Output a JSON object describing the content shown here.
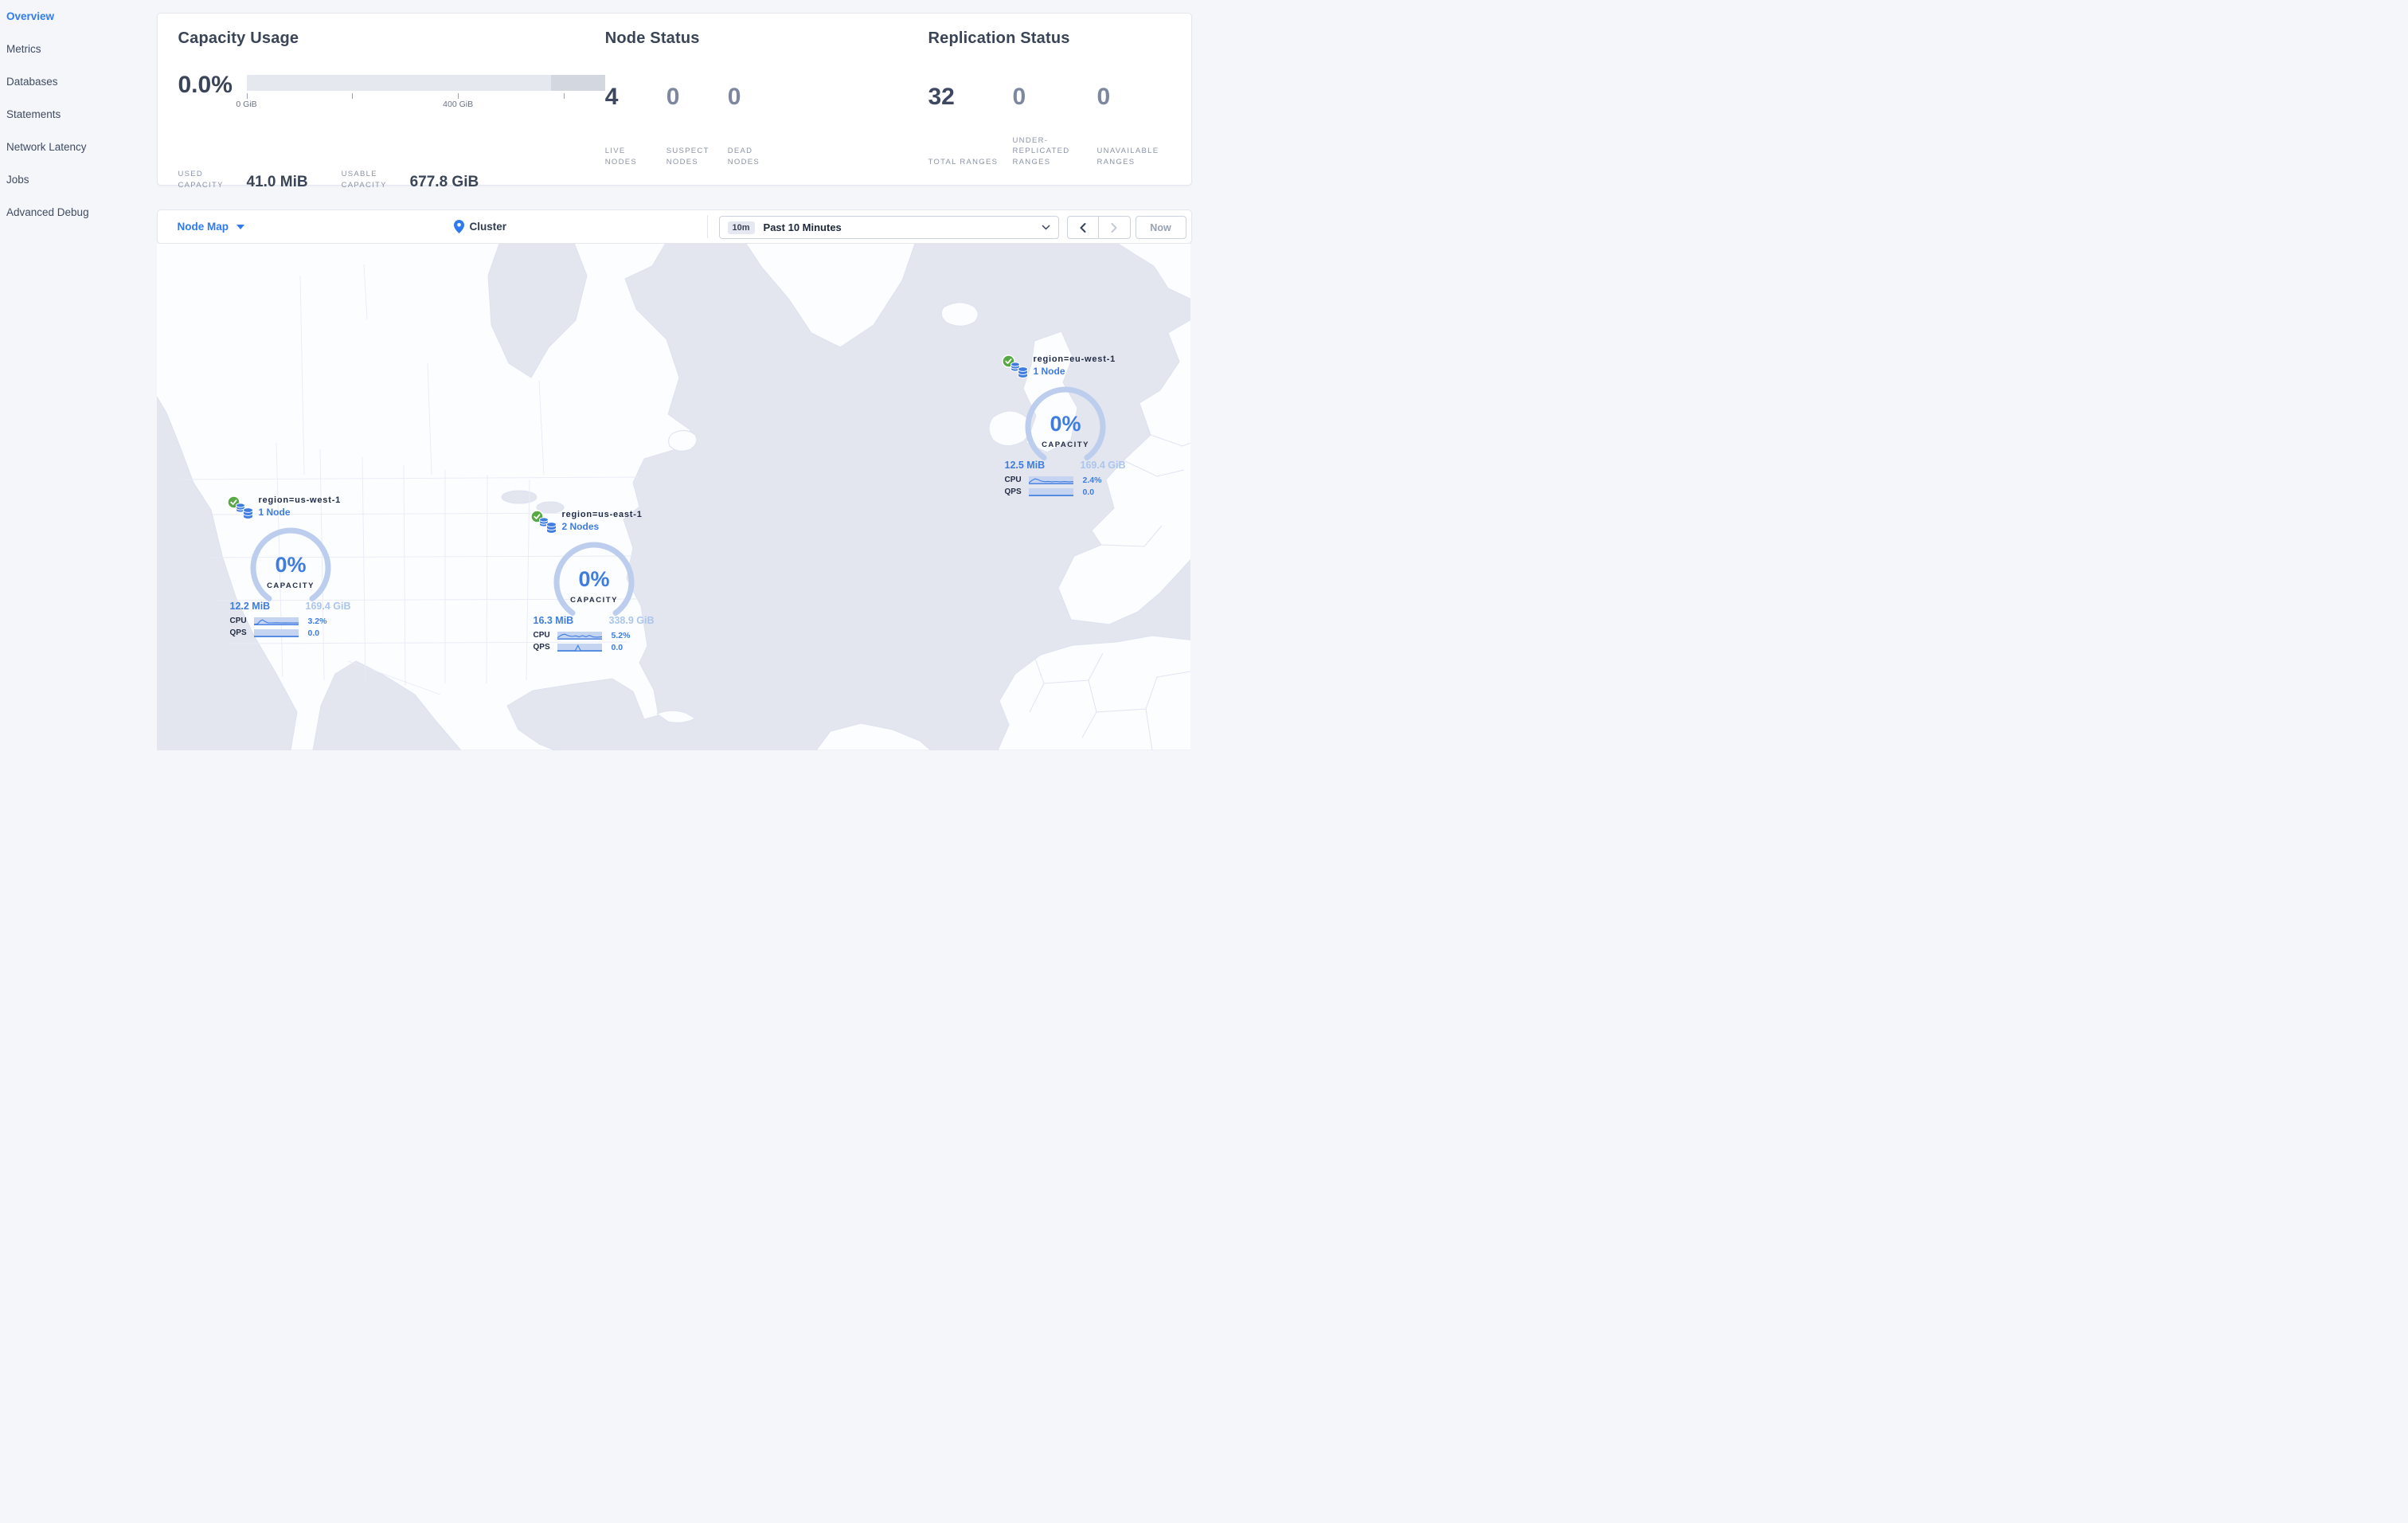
{
  "sidebar": {
    "items": [
      {
        "label": "Overview",
        "active": true
      },
      {
        "label": "Metrics",
        "active": false
      },
      {
        "label": "Databases",
        "active": false
      },
      {
        "label": "Statements",
        "active": false
      },
      {
        "label": "Network Latency",
        "active": false
      },
      {
        "label": "Jobs",
        "active": false
      },
      {
        "label": "Advanced Debug",
        "active": false
      }
    ]
  },
  "summary": {
    "capacity": {
      "title": "Capacity Usage",
      "percent": "0.0%",
      "tick_labels": {
        "t0": "0 GiB",
        "t2": "400 GiB"
      },
      "stats": [
        {
          "label": "USED CAPACITY",
          "value": "41.0 MiB"
        },
        {
          "label": "USABLE CAPACITY",
          "value": "677.8 GiB"
        }
      ]
    },
    "node_status": {
      "title": "Node Status",
      "stats": [
        {
          "value": "4",
          "label": "LIVE NODES"
        },
        {
          "value": "0",
          "label": "SUSPECT NODES"
        },
        {
          "value": "0",
          "label": "DEAD NODES"
        }
      ]
    },
    "replication": {
      "title": "Replication Status",
      "stats": [
        {
          "value": "32",
          "label": "TOTAL RANGES"
        },
        {
          "value": "0",
          "label": "UNDER-REPLICATED RANGES"
        },
        {
          "value": "0",
          "label": "UNAVAILABLE RANGES"
        }
      ]
    }
  },
  "toolbar": {
    "view": "Node Map",
    "breadcrumb": "Cluster",
    "time_badge": "10m",
    "time_label": "Past 10 Minutes",
    "now": "Now"
  },
  "markers": [
    {
      "region": "region=us-west-1",
      "nodes": "1 Node",
      "percent": "0%",
      "capacity_label": "CAPACITY",
      "used": "12.2 MiB",
      "total": "169.4 GiB",
      "cpu_label": "CPU",
      "cpu_value": "3.2%",
      "qps_label": "QPS",
      "qps_value": "0.0",
      "cpu_spark": [
        [
          0,
          95
        ],
        [
          8,
          88
        ],
        [
          14,
          45
        ],
        [
          19,
          28
        ],
        [
          25,
          55
        ],
        [
          31,
          72
        ],
        [
          40,
          74
        ],
        [
          50,
          71
        ],
        [
          60,
          75
        ],
        [
          70,
          72
        ],
        [
          80,
          75
        ],
        [
          90,
          73
        ],
        [
          100,
          75
        ]
      ],
      "qps_spark": [
        [
          0,
          95
        ],
        [
          100,
          95
        ]
      ]
    },
    {
      "region": "region=us-east-1",
      "nodes": "2 Nodes",
      "percent": "0%",
      "capacity_label": "CAPACITY",
      "used": "16.3 MiB",
      "total": "338.9 GiB",
      "cpu_label": "CPU",
      "cpu_value": "5.2%",
      "qps_label": "QPS",
      "qps_value": "0.0",
      "cpu_spark": [
        [
          0,
          80
        ],
        [
          9,
          42
        ],
        [
          16,
          28
        ],
        [
          25,
          52
        ],
        [
          33,
          62
        ],
        [
          41,
          52
        ],
        [
          49,
          68
        ],
        [
          56,
          50
        ],
        [
          64,
          66
        ],
        [
          72,
          46
        ],
        [
          81,
          70
        ],
        [
          90,
          72
        ],
        [
          100,
          66
        ]
      ],
      "qps_spark": [
        [
          0,
          95
        ],
        [
          40,
          95
        ],
        [
          46,
          18
        ],
        [
          52,
          95
        ],
        [
          100,
          95
        ]
      ]
    },
    {
      "region": "region=eu-west-1",
      "nodes": "1 Node",
      "percent": "0%",
      "capacity_label": "CAPACITY",
      "used": "12.5 MiB",
      "total": "169.4 GiB",
      "cpu_label": "CPU",
      "cpu_value": "2.4%",
      "qps_label": "QPS",
      "qps_value": "0.0",
      "cpu_spark": [
        [
          0,
          85
        ],
        [
          8,
          48
        ],
        [
          14,
          28
        ],
        [
          20,
          38
        ],
        [
          28,
          62
        ],
        [
          36,
          70
        ],
        [
          44,
          66
        ],
        [
          52,
          72
        ],
        [
          60,
          68
        ],
        [
          70,
          72
        ],
        [
          80,
          69
        ],
        [
          90,
          72
        ],
        [
          100,
          70
        ]
      ],
      "qps_spark": [
        [
          0,
          95
        ],
        [
          100,
          95
        ]
      ]
    }
  ],
  "colors": {
    "accent_blue": "#2f7af0",
    "marker_blue": "#3e7ce0",
    "gauge_arc": "#bccdee",
    "ocean": "#e3e6ee",
    "land": "#fcfdfe",
    "land_border": "#dde2f0",
    "green_check": "#56a944"
  }
}
